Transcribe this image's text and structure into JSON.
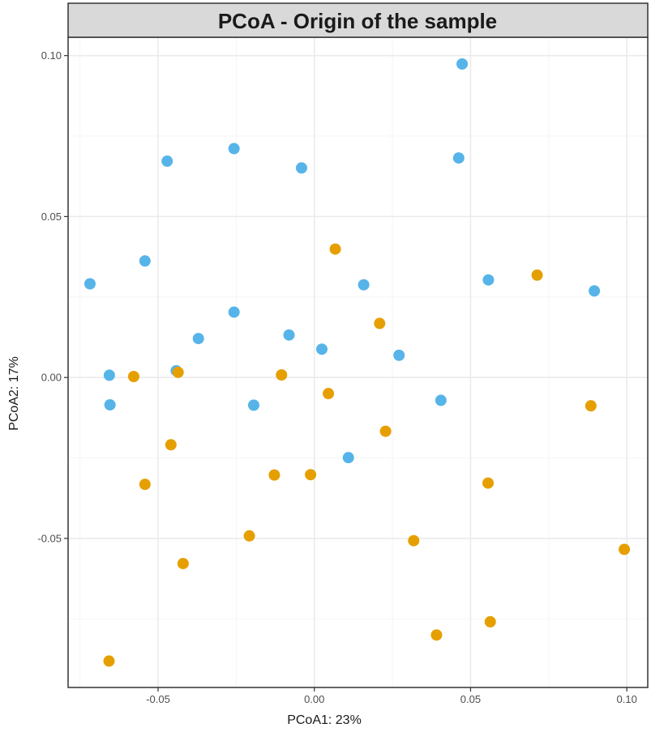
{
  "chart_data": {
    "type": "scatter",
    "title": "PCoA - Origin of the sample",
    "xlabel": "PCoA1: 23%",
    "ylabel": "PCoA2: 17%",
    "xlim": [
      -0.0788,
      0.1067
    ],
    "ylim": [
      -0.0963,
      0.1057
    ],
    "x_ticks": [
      -0.05,
      0.0,
      0.05,
      0.1
    ],
    "x_tick_labels": [
      "-0.05",
      "0.00",
      "0.05",
      "0.10"
    ],
    "y_ticks": [
      -0.05,
      0.0,
      0.05,
      0.1
    ],
    "y_tick_labels": [
      "-0.05",
      "0.00",
      "0.05",
      "0.10"
    ],
    "grid": true,
    "colors": {
      "panel_border": "#333333",
      "strip_fill": "#d9d9d9",
      "grid_major": "#ebebeb",
      "grid_minor": "#f5f5f5"
    },
    "series": [
      {
        "color": "#56b4e9",
        "points": [
          [
            0.0473,
            0.0974
          ],
          [
            0.0462,
            0.0682
          ],
          [
            -0.0471,
            0.0672
          ],
          [
            -0.0257,
            0.0711
          ],
          [
            -0.0041,
            0.0651
          ],
          [
            -0.0718,
            0.0291
          ],
          [
            -0.0542,
            0.0362
          ],
          [
            0.0158,
            0.0288
          ],
          [
            0.0557,
            0.0303
          ],
          [
            0.0896,
            0.0269
          ],
          [
            -0.0257,
            0.0203
          ],
          [
            -0.0371,
            0.0121
          ],
          [
            -0.0081,
            0.0132
          ],
          [
            0.0024,
            0.0088
          ],
          [
            0.0271,
            0.0069
          ],
          [
            -0.0656,
            0.0007
          ],
          [
            -0.0442,
            0.0021
          ],
          [
            -0.0654,
            -0.0085
          ],
          [
            -0.0194,
            -0.0086
          ],
          [
            0.0405,
            -0.0071
          ],
          [
            0.0109,
            -0.0249
          ]
        ]
      },
      {
        "color": "#e69f00",
        "points": [
          [
            0.0067,
            0.0399
          ],
          [
            0.0713,
            0.0318
          ],
          [
            0.0209,
            0.0168
          ],
          [
            -0.0578,
            0.0003
          ],
          [
            -0.0436,
            0.0016
          ],
          [
            -0.0105,
            0.0008
          ],
          [
            0.0045,
            -0.005
          ],
          [
            0.0885,
            -0.0088
          ],
          [
            0.0228,
            -0.0167
          ],
          [
            -0.0459,
            -0.0209
          ],
          [
            -0.0542,
            -0.0332
          ],
          [
            -0.0128,
            -0.0303
          ],
          [
            -0.0012,
            -0.0302
          ],
          [
            0.0556,
            -0.0328
          ],
          [
            -0.0208,
            -0.0492
          ],
          [
            0.0318,
            -0.0507
          ],
          [
            0.0992,
            -0.0534
          ],
          [
            -0.042,
            -0.0578
          ],
          [
            0.0391,
            -0.08
          ],
          [
            0.0563,
            -0.0759
          ],
          [
            -0.0657,
            -0.0881
          ]
        ]
      }
    ]
  }
}
